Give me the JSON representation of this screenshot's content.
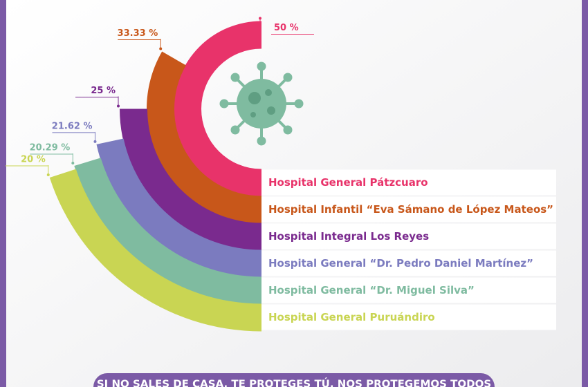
{
  "chart_data": {
    "type": "radial-bar",
    "categories": [
      "Hospital General Pátzcuaro",
      "Hospital Infantil “Eva Sámano de López Mateos”",
      "Hospital Integral Los Reyes",
      "Hospital General “Dr. Pedro Daniel Martínez”",
      "Hospital General “Dr. Miguel Silva”",
      "Hospital General Puruándiro"
    ],
    "values": [
      50,
      33.33,
      25,
      21.62,
      20.29,
      20
    ],
    "value_labels": [
      "50 %",
      "33.33 %",
      "25 %",
      "21.62 %",
      "20.29 %",
      "20 %"
    ],
    "colors": [
      "#e8336a",
      "#c8571a",
      "#7a2a8e",
      "#7b7bbf",
      "#7fbba0",
      "#c9d553"
    ]
  },
  "banner": "SI NO SALES DE CASA, TE PROTEGES TÚ, NOS PROTEGEMOS TODOS"
}
